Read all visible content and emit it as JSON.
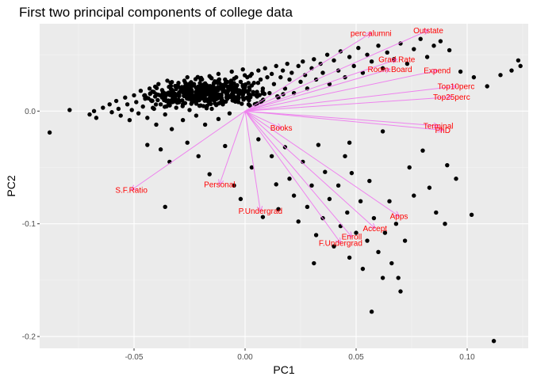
{
  "chart_data": {
    "type": "scatter",
    "subtype": "pca-biplot",
    "title": "First two principal components of college data",
    "xlabel": "PC1",
    "ylabel": "PC2",
    "xlim": [
      -0.0925,
      0.1275
    ],
    "ylim": [
      -0.2105,
      0.0775
    ],
    "xticks": [
      -0.05,
      0.0,
      0.05,
      0.1
    ],
    "xtick_labels": [
      "-0.05",
      "0.00",
      "0.05",
      "0.10"
    ],
    "yticks": [
      -0.2,
      -0.1,
      0.0
    ],
    "ytick_labels": [
      "-0.2",
      "-0.1",
      "0.0"
    ],
    "grid": true,
    "legend": "none",
    "colors": {
      "panel_background": "#ebebeb",
      "grid_major": "#ffffff",
      "points": "#000000",
      "arrows": "#ee82ee",
      "labels": "#ff0000"
    },
    "loadings": [
      {
        "name": "perc.alumni",
        "x": 0.0567,
        "y": 0.0692
      },
      {
        "name": "Outstate",
        "x": 0.0825,
        "y": 0.0717
      },
      {
        "name": "Grad.Rate",
        "x": 0.0683,
        "y": 0.0459
      },
      {
        "name": "Room.Board",
        "x": 0.0652,
        "y": 0.0372
      },
      {
        "name": "Expend",
        "x": 0.0865,
        "y": 0.036
      },
      {
        "name": "Top10perc",
        "x": 0.095,
        "y": 0.022
      },
      {
        "name": "Top25perc",
        "x": 0.093,
        "y": 0.0125
      },
      {
        "name": "Terminal",
        "x": 0.087,
        "y": -0.013
      },
      {
        "name": "PhD",
        "x": 0.089,
        "y": -0.017
      },
      {
        "name": "Books",
        "x": 0.0163,
        "y": -0.015
      },
      {
        "name": "Personal",
        "x": -0.0115,
        "y": -0.065
      },
      {
        "name": "S.F.Ratio",
        "x": -0.0512,
        "y": -0.07
      },
      {
        "name": "P.Undergrad",
        "x": 0.0069,
        "y": -0.0888
      },
      {
        "name": "Apps",
        "x": 0.0693,
        "y": -0.0932
      },
      {
        "name": "Accept",
        "x": 0.0585,
        "y": -0.104
      },
      {
        "name": "Enroll",
        "x": 0.048,
        "y": -0.1115
      },
      {
        "name": "F.Undergrad",
        "x": 0.043,
        "y": -0.117
      }
    ],
    "points": [
      [
        -0.088,
        -0.019
      ],
      [
        -0.079,
        0.001
      ],
      [
        -0.07,
        -0.003
      ],
      [
        -0.068,
        0.0
      ],
      [
        -0.067,
        -0.006
      ],
      [
        -0.064,
        0.003
      ],
      [
        -0.061,
        0.006
      ],
      [
        -0.06,
        -0.001
      ],
      [
        -0.058,
        0.009
      ],
      [
        -0.057,
        0.002
      ],
      [
        -0.056,
        -0.004
      ],
      [
        -0.054,
        0.012
      ],
      [
        -0.053,
        0.006
      ],
      [
        -0.052,
        -0.008
      ],
      [
        -0.051,
        0.001
      ],
      [
        -0.05,
        0.014
      ],
      [
        -0.049,
        0.008
      ],
      [
        -0.048,
        -0.002
      ],
      [
        -0.047,
        0.018
      ],
      [
        -0.046,
        0.004
      ],
      [
        -0.045,
        0.011
      ],
      [
        -0.044,
        -0.006
      ],
      [
        -0.043,
        0.02
      ],
      [
        -0.042,
        0.009
      ],
      [
        -0.041,
        0.002
      ],
      [
        -0.04,
        0.015
      ],
      [
        -0.04,
        -0.012
      ],
      [
        -0.039,
        0.024
      ],
      [
        -0.038,
        0.006
      ],
      [
        -0.037,
        0.017
      ],
      [
        -0.036,
        -0.003
      ],
      [
        -0.036,
        0.011
      ],
      [
        -0.035,
        0.027
      ],
      [
        -0.034,
        0.008
      ],
      [
        -0.033,
        0.019
      ],
      [
        -0.033,
        -0.016
      ],
      [
        -0.032,
        0.013
      ],
      [
        -0.031,
        0.003
      ],
      [
        -0.03,
        0.025
      ],
      [
        -0.03,
        0.01
      ],
      [
        -0.029,
        0.018
      ],
      [
        -0.028,
        -0.008
      ],
      [
        -0.028,
        0.006
      ],
      [
        -0.027,
        0.022
      ],
      [
        -0.026,
        0.014
      ],
      [
        -0.026,
        0.03
      ],
      [
        -0.025,
        0.001
      ],
      [
        -0.024,
        0.017
      ],
      [
        -0.024,
        0.009
      ],
      [
        -0.023,
        0.024
      ],
      [
        -0.022,
        -0.004
      ],
      [
        -0.022,
        0.012
      ],
      [
        -0.021,
        0.02
      ],
      [
        -0.02,
        0.028
      ],
      [
        -0.02,
        0.005
      ],
      [
        -0.019,
        0.015
      ],
      [
        -0.018,
        -0.012
      ],
      [
        -0.018,
        0.022
      ],
      [
        -0.017,
        0.009
      ],
      [
        -0.016,
        0.031
      ],
      [
        -0.016,
        0.017
      ],
      [
        -0.015,
        0.002
      ],
      [
        -0.014,
        0.025
      ],
      [
        -0.014,
        0.012
      ],
      [
        -0.013,
        0.019
      ],
      [
        -0.012,
        -0.007
      ],
      [
        -0.012,
        0.033
      ],
      [
        -0.011,
        0.014
      ],
      [
        -0.01,
        0.022
      ],
      [
        -0.01,
        0.006
      ],
      [
        -0.009,
        0.028
      ],
      [
        -0.008,
        0.011
      ],
      [
        -0.008,
        0.018
      ],
      [
        -0.007,
        -0.002
      ],
      [
        -0.006,
        0.035
      ],
      [
        -0.006,
        0.024
      ],
      [
        -0.005,
        0.013
      ],
      [
        -0.004,
        0.02
      ],
      [
        -0.004,
        0.03
      ],
      [
        -0.003,
        0.008
      ],
      [
        -0.002,
        0.026
      ],
      [
        -0.002,
        0.016
      ],
      [
        -0.001,
        0.037
      ],
      [
        0.0,
        0.022
      ],
      [
        0.001,
        0.012
      ],
      [
        0.001,
        0.03
      ],
      [
        0.002,
        0.019
      ],
      [
        0.003,
        0.033
      ],
      [
        0.004,
        0.025
      ],
      [
        0.005,
        0.014
      ],
      [
        0.006,
        0.036
      ],
      [
        0.007,
        0.028
      ],
      [
        0.008,
        0.02
      ],
      [
        0.009,
        0.038
      ],
      [
        0.01,
        0.03
      ],
      [
        0.011,
        0.016
      ],
      [
        0.012,
        0.033
      ],
      [
        0.013,
        0.024
      ],
      [
        0.014,
        0.04
      ],
      [
        0.015,
        0.012
      ],
      [
        0.016,
        0.03
      ],
      [
        0.017,
        0.036
      ],
      [
        0.018,
        0.02
      ],
      [
        0.019,
        0.042
      ],
      [
        0.02,
        0.028
      ],
      [
        0.021,
        0.034
      ],
      [
        0.022,
        0.016
      ],
      [
        0.024,
        0.04
      ],
      [
        0.025,
        0.026
      ],
      [
        0.026,
        0.044
      ],
      [
        0.027,
        0.032
      ],
      [
        0.028,
        0.02
      ],
      [
        0.03,
        0.038
      ],
      [
        0.031,
        0.046
      ],
      [
        0.032,
        0.028
      ],
      [
        0.034,
        0.042
      ],
      [
        0.035,
        0.034
      ],
      [
        0.037,
        0.05
      ],
      [
        0.038,
        0.024
      ],
      [
        0.04,
        0.045
      ],
      [
        0.042,
        0.036
      ],
      [
        0.043,
        0.053
      ],
      [
        0.045,
        0.03
      ],
      [
        0.047,
        0.048
      ],
      [
        0.049,
        0.04
      ],
      [
        0.051,
        0.056
      ],
      [
        0.053,
        0.034
      ],
      [
        0.055,
        0.05
      ],
      [
        0.057,
        0.044
      ],
      [
        0.06,
        0.058
      ],
      [
        0.062,
        0.038
      ],
      [
        0.064,
        0.052
      ],
      [
        0.067,
        0.046
      ],
      [
        0.07,
        0.06
      ],
      [
        0.073,
        0.042
      ],
      [
        0.076,
        0.055
      ],
      [
        0.079,
        0.064
      ],
      [
        0.082,
        0.048
      ],
      [
        0.085,
        0.058
      ],
      [
        0.088,
        0.062
      ],
      [
        0.092,
        0.054
      ],
      [
        0.097,
        0.035
      ],
      [
        0.103,
        0.03
      ],
      [
        0.109,
        0.022
      ],
      [
        0.115,
        0.032
      ],
      [
        0.12,
        0.036
      ],
      [
        0.123,
        0.045
      ],
      [
        0.124,
        0.04
      ],
      [
        -0.044,
        -0.03
      ],
      [
        -0.038,
        -0.034
      ],
      [
        -0.034,
        -0.045
      ],
      [
        -0.026,
        -0.028
      ],
      [
        -0.036,
        -0.085
      ],
      [
        -0.021,
        -0.04
      ],
      [
        -0.016,
        -0.056
      ],
      [
        -0.009,
        -0.031
      ],
      [
        -0.005,
        -0.066
      ],
      [
        -0.002,
        -0.078
      ],
      [
        0.003,
        -0.05
      ],
      [
        0.006,
        -0.025
      ],
      [
        0.008,
        -0.094
      ],
      [
        0.012,
        -0.04
      ],
      [
        0.014,
        -0.065
      ],
      [
        0.015,
        -0.087
      ],
      [
        0.018,
        -0.032
      ],
      [
        0.02,
        -0.06
      ],
      [
        0.022,
        -0.075
      ],
      [
        0.024,
        -0.098
      ],
      [
        0.026,
        -0.045
      ],
      [
        0.028,
        -0.085
      ],
      [
        0.03,
        -0.066
      ],
      [
        0.032,
        -0.11
      ],
      [
        0.033,
        -0.03
      ],
      [
        0.035,
        -0.095
      ],
      [
        0.036,
        -0.054
      ],
      [
        0.038,
        -0.078
      ],
      [
        0.04,
        -0.12
      ],
      [
        0.042,
        -0.066
      ],
      [
        0.043,
        -0.102
      ],
      [
        0.045,
        -0.04
      ],
      [
        0.046,
        -0.09
      ],
      [
        0.047,
        -0.13
      ],
      [
        0.048,
        -0.055
      ],
      [
        0.05,
        -0.108
      ],
      [
        0.052,
        -0.08
      ],
      [
        0.053,
        -0.14
      ],
      [
        0.055,
        -0.115
      ],
      [
        0.056,
        -0.062
      ],
      [
        0.058,
        -0.095
      ],
      [
        0.06,
        -0.125
      ],
      [
        0.062,
        -0.148
      ],
      [
        0.063,
        -0.108
      ],
      [
        0.065,
        -0.08
      ],
      [
        0.066,
        -0.135
      ],
      [
        0.068,
        -0.1
      ],
      [
        0.07,
        -0.16
      ],
      [
        0.072,
        -0.115
      ],
      [
        0.074,
        -0.05
      ],
      [
        0.076,
        -0.075
      ],
      [
        0.08,
        -0.035
      ],
      [
        0.083,
        -0.068
      ],
      [
        0.086,
        -0.09
      ],
      [
        0.09,
        -0.1
      ],
      [
        0.095,
        -0.06
      ],
      [
        0.102,
        -0.092
      ],
      [
        0.112,
        -0.204
      ],
      [
        0.069,
        -0.148
      ],
      [
        0.047,
        -0.028
      ],
      [
        0.062,
        -0.018
      ],
      [
        0.091,
        -0.048
      ],
      [
        0.031,
        -0.135
      ],
      [
        0.057,
        -0.178
      ]
    ]
  }
}
